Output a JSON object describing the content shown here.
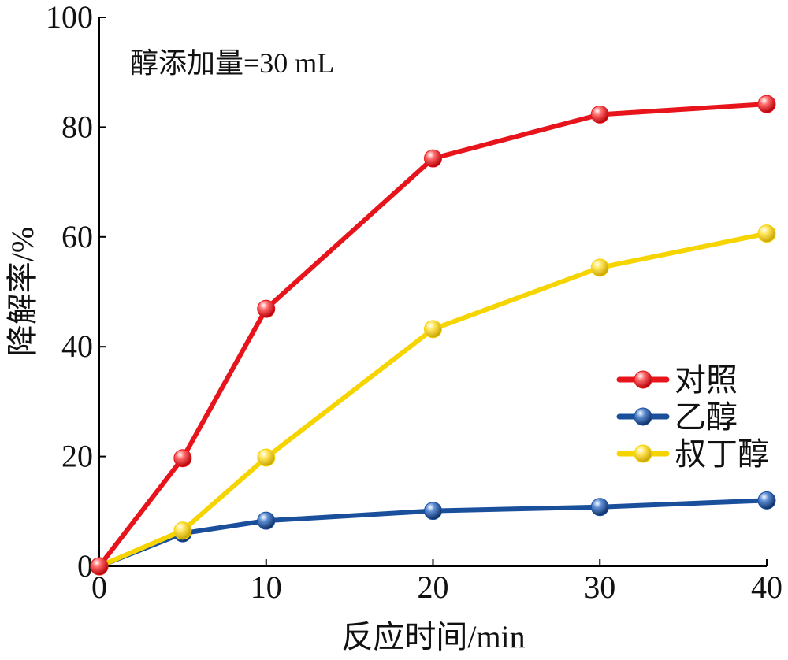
{
  "chart_data": {
    "type": "line",
    "annotation": "醇添加量=30 mL",
    "xlabel": "反应时间/min",
    "ylabel": "降解率/%",
    "xlim": [
      0,
      40
    ],
    "ylim": [
      0,
      100
    ],
    "xticks": [
      0,
      10,
      20,
      30,
      40
    ],
    "yticks": [
      0,
      20,
      40,
      60,
      80,
      100
    ],
    "grid": false,
    "legend_position": "right",
    "series": [
      {
        "name": "对照",
        "color": "#e8141c",
        "x": [
          0,
          5,
          10,
          20,
          30,
          40
        ],
        "y": [
          0,
          19.7,
          46.9,
          74.3,
          82.3,
          84.2
        ]
      },
      {
        "name": "乙醇",
        "color": "#1a4f9c",
        "x": [
          0,
          5,
          10,
          20,
          30,
          40
        ],
        "y": [
          0,
          6.0,
          8.3,
          10.1,
          10.8,
          12.0
        ]
      },
      {
        "name": "叔丁醇",
        "color": "#f5d400",
        "x": [
          0,
          5,
          10,
          20,
          30,
          40
        ],
        "y": [
          0,
          6.5,
          19.8,
          43.2,
          54.4,
          60.6
        ]
      }
    ]
  }
}
